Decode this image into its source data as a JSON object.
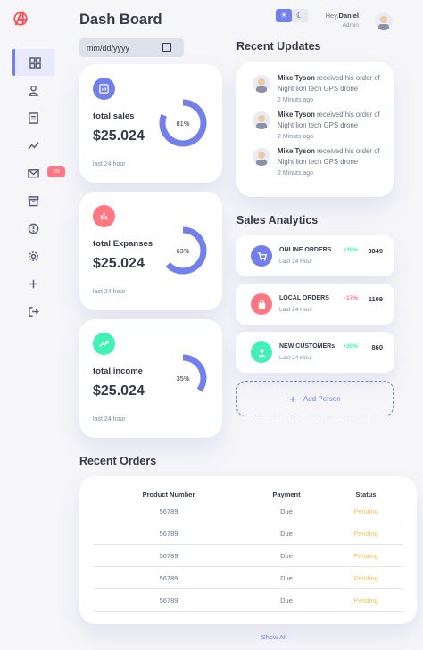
{
  "header": {
    "title": "Dash Board",
    "date_placeholder": "mm/dd/yyyy",
    "theme_toggle": {
      "light_icon": "sun-icon",
      "dark_icon": "moon-icon"
    },
    "greeting": "Hey,",
    "user_name": "Daniel",
    "user_role": "Admin"
  },
  "sidebar": {
    "logo_icon": "avengers-logo-icon",
    "items": [
      {
        "icon": "grid-icon",
        "active": true
      },
      {
        "icon": "person-icon"
      },
      {
        "icon": "receipt-icon"
      },
      {
        "icon": "insights-icon"
      },
      {
        "icon": "mail-icon",
        "badge": "26"
      },
      {
        "icon": "inventory-icon"
      },
      {
        "icon": "report-icon"
      },
      {
        "icon": "settings-icon"
      },
      {
        "icon": "add-icon"
      },
      {
        "icon": "logout-icon"
      }
    ]
  },
  "insights": [
    {
      "title": "total sales",
      "value": "$25.024",
      "percent_label": "81%",
      "percent": 81,
      "time": "last 24 hour",
      "icon": "analytics-icon",
      "color": "#7380ec"
    },
    {
      "title": "total Expanses",
      "value": "$25.024",
      "percent_label": "63%",
      "percent": 63,
      "time": "last 24 hour",
      "icon": "bar-chart-icon",
      "color": "#ff7782"
    },
    {
      "title": "total income",
      "value": "$25.024",
      "percent_label": "35%",
      "percent": 35,
      "time": "last 24 hour",
      "icon": "trending-up-icon",
      "color": "#41f1b6"
    }
  ],
  "recent_updates": {
    "title": "Recent Updates",
    "items": [
      {
        "name": "Mike Tyson",
        "text": " received his order of Night lion tech GPS drone",
        "time": "2 Minuts ago"
      },
      {
        "name": "Mike Tyson",
        "text": " received his order of Night lion tech GPS drone",
        "time": "2 Minuts ago"
      },
      {
        "name": "Mike Tyson",
        "text": " received his order of Night lion tech GPS drone",
        "time": "2 Minuts ago"
      }
    ]
  },
  "sales_analytics": {
    "title": "Sales Analytics",
    "items": [
      {
        "title": "ONLINE ORDERS",
        "time": "Last 24 Hour",
        "percent": "+39%",
        "value": "3849",
        "icon": "cart-icon",
        "color": "#7380ec",
        "percent_color": "#41f1b6"
      },
      {
        "title": "LOCAL ORDERS",
        "time": "Last 24 Hour",
        "percent": "-17%",
        "value": "1109",
        "icon": "shopping-bag-icon",
        "color": "#ff7782",
        "percent_color": "#ff7782"
      },
      {
        "title": "NEW CUSTOMERs",
        "time": "Last 24 Hour",
        "percent": "+39%",
        "value": "860",
        "icon": "person-icon",
        "color": "#41f1b6",
        "percent_color": "#41f1b6"
      }
    ],
    "add_label": "Add Person"
  },
  "recent_orders": {
    "title": "Recent Orders",
    "headers": [
      "Product Number",
      "Payment",
      "Status"
    ],
    "rows": [
      {
        "product": "56789",
        "payment": "Due",
        "status": "Pending"
      },
      {
        "product": "56789",
        "payment": "Due",
        "status": "Pending"
      },
      {
        "product": "56789",
        "payment": "Due",
        "status": "Pending"
      },
      {
        "product": "56789",
        "payment": "Due",
        "status": "Pending"
      },
      {
        "product": "56789",
        "payment": "Due",
        "status": "Pending"
      }
    ],
    "show_all": "Show All"
  },
  "colors": {
    "primary": "#7380ec",
    "danger": "#ff7782",
    "success": "#41f1b6",
    "warning": "#ffbb55"
  }
}
